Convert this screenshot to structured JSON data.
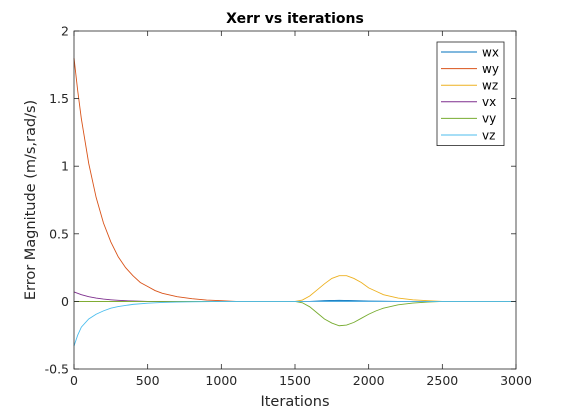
{
  "chart_data": {
    "type": "line",
    "title": "Xerr vs iterations",
    "xlabel": "Iterations",
    "ylabel": "Error Magnitude (m/s,rad/s)",
    "xlim": [
      0,
      3000
    ],
    "ylim": [
      -0.5,
      2
    ],
    "xticks": [
      0,
      500,
      1000,
      1500,
      2000,
      2500,
      3000
    ],
    "xtick_labels": [
      "0",
      "500",
      "1000",
      "1500",
      "2000",
      "2500",
      "3000"
    ],
    "yticks": [
      -0.5,
      0,
      0.5,
      1,
      1.5,
      2
    ],
    "ytick_labels": [
      "-0.5",
      "0",
      "0.5",
      "1",
      "1.5",
      "2"
    ],
    "grid": false,
    "legend_position": "top-right",
    "series": [
      {
        "name": "wx",
        "color": "#0072BD",
        "x": [
          0,
          500,
          1000,
          1500,
          1600,
          1700,
          1800,
          1900,
          2000,
          2200,
          2500,
          3000
        ],
        "y": [
          0,
          0,
          0,
          0,
          0,
          0.005,
          0.008,
          0.005,
          0.002,
          0,
          0,
          0
        ]
      },
      {
        "name": "wy",
        "color": "#D95319",
        "x": [
          0,
          25,
          50,
          100,
          150,
          200,
          250,
          300,
          350,
          400,
          450,
          500,
          550,
          600,
          700,
          800,
          900,
          1000,
          1100,
          3000
        ],
        "y": [
          1.8,
          1.56,
          1.35,
          1.02,
          0.77,
          0.58,
          0.44,
          0.33,
          0.25,
          0.19,
          0.14,
          0.11,
          0.08,
          0.06,
          0.035,
          0.02,
          0.01,
          0.005,
          0,
          0
        ]
      },
      {
        "name": "wz",
        "color": "#EDB120",
        "x": [
          0,
          1500,
          1550,
          1600,
          1650,
          1700,
          1750,
          1800,
          1850,
          1900,
          1950,
          2000,
          2050,
          2100,
          2200,
          2300,
          2400,
          2500,
          3000
        ],
        "y": [
          0,
          0,
          0.01,
          0.04,
          0.085,
          0.13,
          0.17,
          0.19,
          0.19,
          0.17,
          0.14,
          0.1,
          0.075,
          0.05,
          0.025,
          0.012,
          0.005,
          0,
          0
        ]
      },
      {
        "name": "vx",
        "color": "#7E2F8E",
        "x": [
          0,
          50,
          100,
          150,
          200,
          250,
          300,
          350,
          400,
          500,
          3000
        ],
        "y": [
          0.07,
          0.05,
          0.035,
          0.025,
          0.017,
          0.012,
          0.008,
          0.005,
          0.003,
          0,
          0
        ]
      },
      {
        "name": "vy",
        "color": "#77AC30",
        "x": [
          0,
          1500,
          1550,
          1600,
          1650,
          1700,
          1750,
          1800,
          1850,
          1900,
          1950,
          2000,
          2050,
          2100,
          2200,
          2300,
          2400,
          2500,
          3000
        ],
        "y": [
          0,
          0,
          -0.01,
          -0.04,
          -0.085,
          -0.13,
          -0.16,
          -0.18,
          -0.175,
          -0.155,
          -0.125,
          -0.095,
          -0.07,
          -0.05,
          -0.025,
          -0.012,
          -0.005,
          0,
          0
        ]
      },
      {
        "name": "vz",
        "color": "#4DBEEE",
        "x": [
          0,
          25,
          50,
          100,
          150,
          200,
          250,
          300,
          400,
          500,
          600,
          700,
          800,
          1000,
          3000
        ],
        "y": [
          -0.33,
          -0.25,
          -0.19,
          -0.13,
          -0.095,
          -0.07,
          -0.05,
          -0.038,
          -0.022,
          -0.013,
          -0.008,
          -0.005,
          -0.003,
          0,
          0
        ]
      }
    ]
  }
}
